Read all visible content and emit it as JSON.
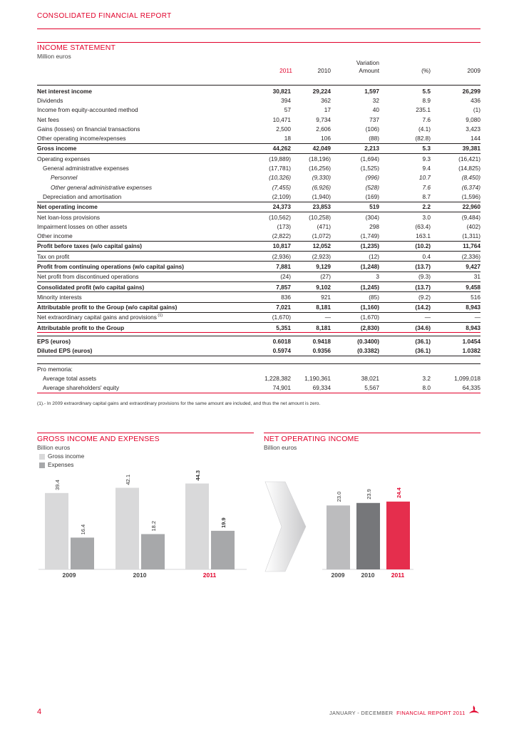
{
  "header": {
    "title": "CONSOLIDATED FINANCIAL REPORT"
  },
  "income_statement": {
    "title": "INCOME STATEMENT",
    "unit": "Million euros",
    "columns": {
      "y2011": "2011",
      "y2010": "2010",
      "variation": "Variation",
      "amount": "Amount",
      "pct": "(%)",
      "y2009": "2009"
    },
    "rows": [
      [
        "Net interest income",
        "30,821",
        "29,224",
        "1,597",
        "5.5",
        "26,299"
      ],
      [
        "Dividends",
        "394",
        "362",
        "32",
        "8.9",
        "436"
      ],
      [
        "Income from equity-accounted method",
        "57",
        "17",
        "40",
        "235.1",
        "(1)"
      ],
      [
        "Net fees",
        "10,471",
        "9,734",
        "737",
        "7.6",
        "9,080"
      ],
      [
        "Gains (losses) on financial transactions",
        "2,500",
        "2,606",
        "(106)",
        "(4.1)",
        "3,423"
      ],
      [
        "Other operating income/expenses",
        "18",
        "106",
        "(88)",
        "(82.8)",
        "144"
      ],
      [
        "Gross income",
        "44,262",
        "42,049",
        "2,213",
        "5.3",
        "39,381"
      ],
      [
        "Operating expenses",
        "(19,889)",
        "(18,196)",
        "(1,694)",
        "9.3",
        "(16,421)"
      ],
      [
        "General administrative expenses",
        "(17,781)",
        "(16,256)",
        "(1,525)",
        "9.4",
        "(14,825)"
      ],
      [
        "Personnel",
        "(10,326)",
        "(9,330)",
        "(996)",
        "10.7",
        "(8,450)"
      ],
      [
        "Other general administrative expenses",
        "(7,455)",
        "(6,926)",
        "(528)",
        "7.6",
        "(6,374)"
      ],
      [
        "Depreciation and amortisation",
        "(2,109)",
        "(1,940)",
        "(169)",
        "8.7",
        "(1,596)"
      ],
      [
        "Net operating income",
        "24,373",
        "23,853",
        "519",
        "2.2",
        "22,960"
      ],
      [
        "Net loan-loss provisions",
        "(10,562)",
        "(10,258)",
        "(304)",
        "3.0",
        "(9,484)"
      ],
      [
        "Impairment losses on other assets",
        "(173)",
        "(471)",
        "298",
        "(63.4)",
        "(402)"
      ],
      [
        "Other income",
        "(2,822)",
        "(1,072)",
        "(1,749)",
        "163.1",
        "(1,311)"
      ],
      [
        "Profit before taxes (w/o capital gains)",
        "10,817",
        "12,052",
        "(1,235)",
        "(10.2)",
        "11,764"
      ],
      [
        "Tax on profit",
        "(2,936)",
        "(2,923)",
        "(12)",
        "0.4",
        "(2,336)"
      ],
      [
        "Profit from continuing operations (w/o capital gains)",
        "7,881",
        "9,129",
        "(1,248)",
        "(13.7)",
        "9,427"
      ],
      [
        "Net profit from discontinued operations",
        "(24)",
        "(27)",
        "3",
        "(9.3)",
        "31"
      ],
      [
        "Consolidated profit (w/o capital gains)",
        "7,857",
        "9,102",
        "(1,245)",
        "(13.7)",
        "9,458"
      ],
      [
        "Minority interests",
        "836",
        "921",
        "(85)",
        "(9.2)",
        "516"
      ],
      [
        "Attributable profit to the Group (w/o capital gains)",
        "7,021",
        "8,181",
        "(1,160)",
        "(14.2)",
        "8,943"
      ],
      [
        "Net extraordinary capital gains and provisions",
        "(1,670)",
        "—",
        "(1,670)",
        "—",
        "—"
      ],
      [
        "Attributable profit to the Group",
        "5,351",
        "8,181",
        "(2,830)",
        "(34.6)",
        "8,943"
      ]
    ],
    "extraordinary_note_mark": "(1)",
    "eps_rows": [
      [
        "EPS (euros)",
        "0.6018",
        "0.9418",
        "(0.3400)",
        "(36.1)",
        "1.0454"
      ],
      [
        "Diluted EPS (euros)",
        "0.5974",
        "0.9356",
        "(0.3382)",
        "(36.1)",
        "1.0382"
      ]
    ],
    "memoria_label": "Pro memoria:",
    "memoria_rows": [
      [
        "Average total assets",
        "1,228,382",
        "1,190,361",
        "38,021",
        "3.2",
        "1,099,018"
      ],
      [
        "Average shareholders' equity",
        "74,901",
        "69,334",
        "5,567",
        "8.0",
        "64,335"
      ]
    ],
    "footnote": "(1).- In 2009 extraordinary capital gains and extraordinary provisions for the same amount are included, and thus the net amount is zero."
  },
  "chart_data": [
    {
      "type": "bar",
      "title": "GROSS INCOME AND EXPENSES",
      "subtitle": "Billion euros",
      "categories": [
        "2009",
        "2010",
        "2011"
      ],
      "series": [
        {
          "name": "Gross income",
          "values": [
            39.4,
            42.1,
            44.3
          ],
          "labels": [
            "39.4",
            "42.1",
            "44.3"
          ]
        },
        {
          "name": "Expenses",
          "values": [
            16.4,
            18.2,
            19.9
          ],
          "labels": [
            "16.4",
            "18.2",
            "19.9"
          ]
        }
      ],
      "colors": {
        "gross": "#d9d9da",
        "expenses": "#a7a8aa"
      },
      "grid": false,
      "legend": "top-left"
    },
    {
      "type": "bar",
      "title": "NET OPERATING INCOME",
      "subtitle": "Billion euros",
      "categories": [
        "2009",
        "2010",
        "2011"
      ],
      "values": [
        23.0,
        23.9,
        24.4
      ],
      "labels": [
        "23.0",
        "23.9",
        "24.4"
      ],
      "colors": [
        "#bcbcbe",
        "#76777a",
        "#e52e4d"
      ],
      "grid": false
    }
  ],
  "footer": {
    "page_number": "4",
    "period": "JANUARY - DECEMBER",
    "report": "FINANCIAL REPORT 2011"
  },
  "colors": {
    "accent": "#e1002a",
    "text": "#231f20"
  }
}
